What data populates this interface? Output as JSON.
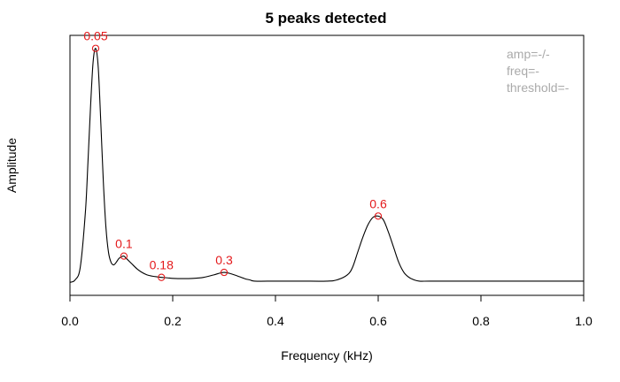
{
  "chart_data": {
    "type": "line",
    "title": "5 peaks detected",
    "xlabel": "Frequency (kHz)",
    "ylabel": "Amplitude",
    "xlim": [
      0,
      1
    ],
    "ylim": [
      0,
      1
    ],
    "x_ticks": [
      0.0,
      0.2,
      0.4,
      0.6,
      0.8,
      1.0
    ],
    "x_tick_labels": [
      "0.0",
      "0.2",
      "0.4",
      "0.6",
      "0.8",
      "1.0"
    ],
    "grid": false,
    "line_color": "#000000",
    "peak_color": "#e41a1c",
    "peaks": [
      {
        "x": 0.05,
        "y": 0.955,
        "label": "0.05"
      },
      {
        "x": 0.105,
        "y": 0.125,
        "label": "0.1"
      },
      {
        "x": 0.178,
        "y": 0.04,
        "label": "0.18"
      },
      {
        "x": 0.3,
        "y": 0.06,
        "label": "0.3"
      },
      {
        "x": 0.6,
        "y": 0.285,
        "label": "0.6"
      }
    ],
    "series": [
      {
        "x": [
          0.0,
          0.01,
          0.02,
          0.03,
          0.035,
          0.04,
          0.045,
          0.05,
          0.055,
          0.06,
          0.065,
          0.07,
          0.075,
          0.08,
          0.085,
          0.09,
          0.095,
          0.1,
          0.105,
          0.11,
          0.12,
          0.13,
          0.14,
          0.15,
          0.16,
          0.17,
          0.178,
          0.19,
          0.2,
          0.22,
          0.24,
          0.26,
          0.28,
          0.3,
          0.32,
          0.34,
          0.35,
          0.36,
          0.4,
          0.45,
          0.5,
          0.52,
          0.54,
          0.55,
          0.56,
          0.57,
          0.58,
          0.59,
          0.6,
          0.61,
          0.62,
          0.63,
          0.64,
          0.65,
          0.66,
          0.67,
          0.68,
          0.7,
          0.75,
          0.8,
          0.9,
          1.0
        ],
        "y": [
          0.02,
          0.03,
          0.08,
          0.3,
          0.5,
          0.72,
          0.9,
          0.955,
          0.88,
          0.66,
          0.42,
          0.24,
          0.14,
          0.1,
          0.09,
          0.1,
          0.115,
          0.122,
          0.125,
          0.115,
          0.095,
          0.075,
          0.06,
          0.05,
          0.045,
          0.042,
          0.04,
          0.038,
          0.036,
          0.035,
          0.036,
          0.04,
          0.05,
          0.06,
          0.05,
          0.035,
          0.03,
          0.025,
          0.025,
          0.025,
          0.025,
          0.03,
          0.05,
          0.08,
          0.14,
          0.2,
          0.25,
          0.28,
          0.285,
          0.27,
          0.22,
          0.16,
          0.1,
          0.06,
          0.04,
          0.03,
          0.025,
          0.025,
          0.025,
          0.025,
          0.025,
          0.025
        ]
      }
    ]
  },
  "info": {
    "amp": "amp=-/-",
    "freq": "freq=-",
    "threshold": "threshold=-"
  }
}
